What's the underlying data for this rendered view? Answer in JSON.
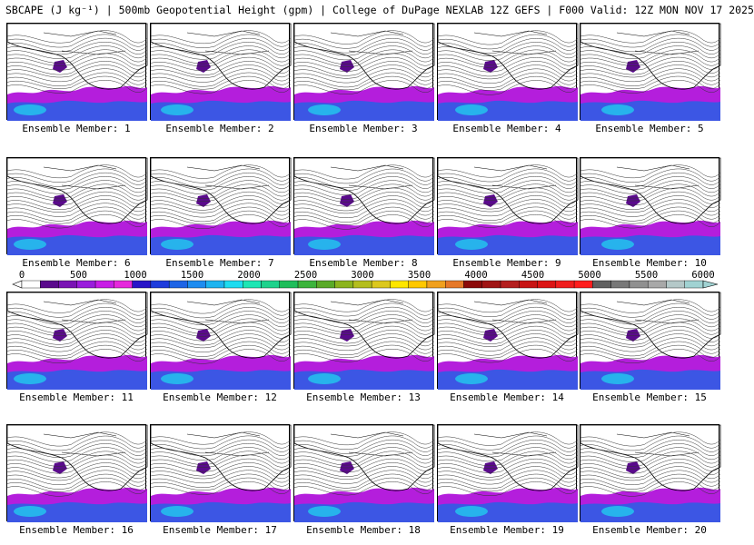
{
  "title": "SBCAPE (J kg⁻¹) | 500mb Geopotential Height (gpm) | College of DuPage NEXLAB 12Z GEFS | F000 Valid: 12Z MON NOV 17 2025",
  "members": [
    "Ensemble Member: 1",
    "Ensemble Member: 2",
    "Ensemble Member: 3",
    "Ensemble Member: 4",
    "Ensemble Member: 5",
    "Ensemble Member: 6",
    "Ensemble Member: 7",
    "Ensemble Member: 8",
    "Ensemble Member: 9",
    "Ensemble Member: 10",
    "Ensemble Member: 11",
    "Ensemble Member: 12",
    "Ensemble Member: 13",
    "Ensemble Member: 14",
    "Ensemble Member: 15",
    "Ensemble Member: 16",
    "Ensemble Member: 17",
    "Ensemble Member: 18",
    "Ensemble Member: 19",
    "Ensemble Member: 20"
  ],
  "colorbar": {
    "ticks": [
      "0",
      "500",
      "1000",
      "1500",
      "2000",
      "2500",
      "3000",
      "3500",
      "4000",
      "4500",
      "5000",
      "5500",
      "6000"
    ],
    "colors": [
      "#ffffff",
      "#5a0a8c",
      "#7a14b4",
      "#9a1edc",
      "#c81ee6",
      "#e628dc",
      "#2814c8",
      "#1e3cdc",
      "#1e64e6",
      "#1e8cf0",
      "#1eb4f0",
      "#1edcf0",
      "#1ee6b4",
      "#1ed28c",
      "#1ebe5a",
      "#3cb43c",
      "#5aaa28",
      "#8cb41e",
      "#b4be1e",
      "#dcc81e",
      "#ffe600",
      "#ffc800",
      "#f0a01e",
      "#e67828",
      "#8c0a0a",
      "#a01414",
      "#b41e1e",
      "#c81414",
      "#dc1414",
      "#f01e1e",
      "#ff1e1e",
      "#606060",
      "#787878",
      "#909090",
      "#a8a8a8",
      "#b4c8c8",
      "#a0d2d2"
    ]
  }
}
